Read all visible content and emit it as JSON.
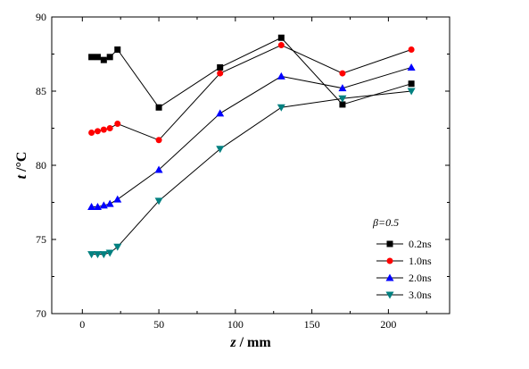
{
  "chart_data": {
    "type": "line",
    "title": "",
    "xlabel_italic": "z",
    "xlabel_rest": " / mm",
    "ylabel_italic": "t",
    "ylabel_rest": " /°C",
    "xlim": [
      -20,
      240
    ],
    "ylim": [
      70,
      90
    ],
    "xticks": [
      0,
      50,
      100,
      150,
      200
    ],
    "yticks": [
      70,
      75,
      80,
      85,
      90
    ],
    "annotation": "β=0.5",
    "grid": false,
    "legend_position": "bottom-right",
    "x": [
      6,
      10,
      14,
      18,
      23,
      50,
      90,
      130,
      170,
      215
    ],
    "series": [
      {
        "name": "0.2ns",
        "color": "#000000",
        "marker": "square",
        "values": [
          87.3,
          87.3,
          87.1,
          87.3,
          87.8,
          83.9,
          86.6,
          88.6,
          84.1,
          85.5
        ]
      },
      {
        "name": "1.0ns",
        "color": "#ff0000",
        "marker": "circle",
        "values": [
          82.2,
          82.3,
          82.4,
          82.5,
          82.8,
          81.7,
          86.2,
          88.1,
          86.2,
          87.8
        ]
      },
      {
        "name": "2.0ns",
        "color": "#0000ff",
        "marker": "triangle-up",
        "values": [
          77.2,
          77.2,
          77.3,
          77.4,
          77.7,
          79.7,
          83.5,
          86.0,
          85.2,
          86.6
        ]
      },
      {
        "name": "3.0ns",
        "color": "#008080",
        "marker": "triangle-down",
        "values": [
          74.0,
          74.0,
          74.0,
          74.1,
          74.5,
          77.6,
          81.1,
          83.9,
          84.5,
          85.0
        ]
      }
    ]
  }
}
